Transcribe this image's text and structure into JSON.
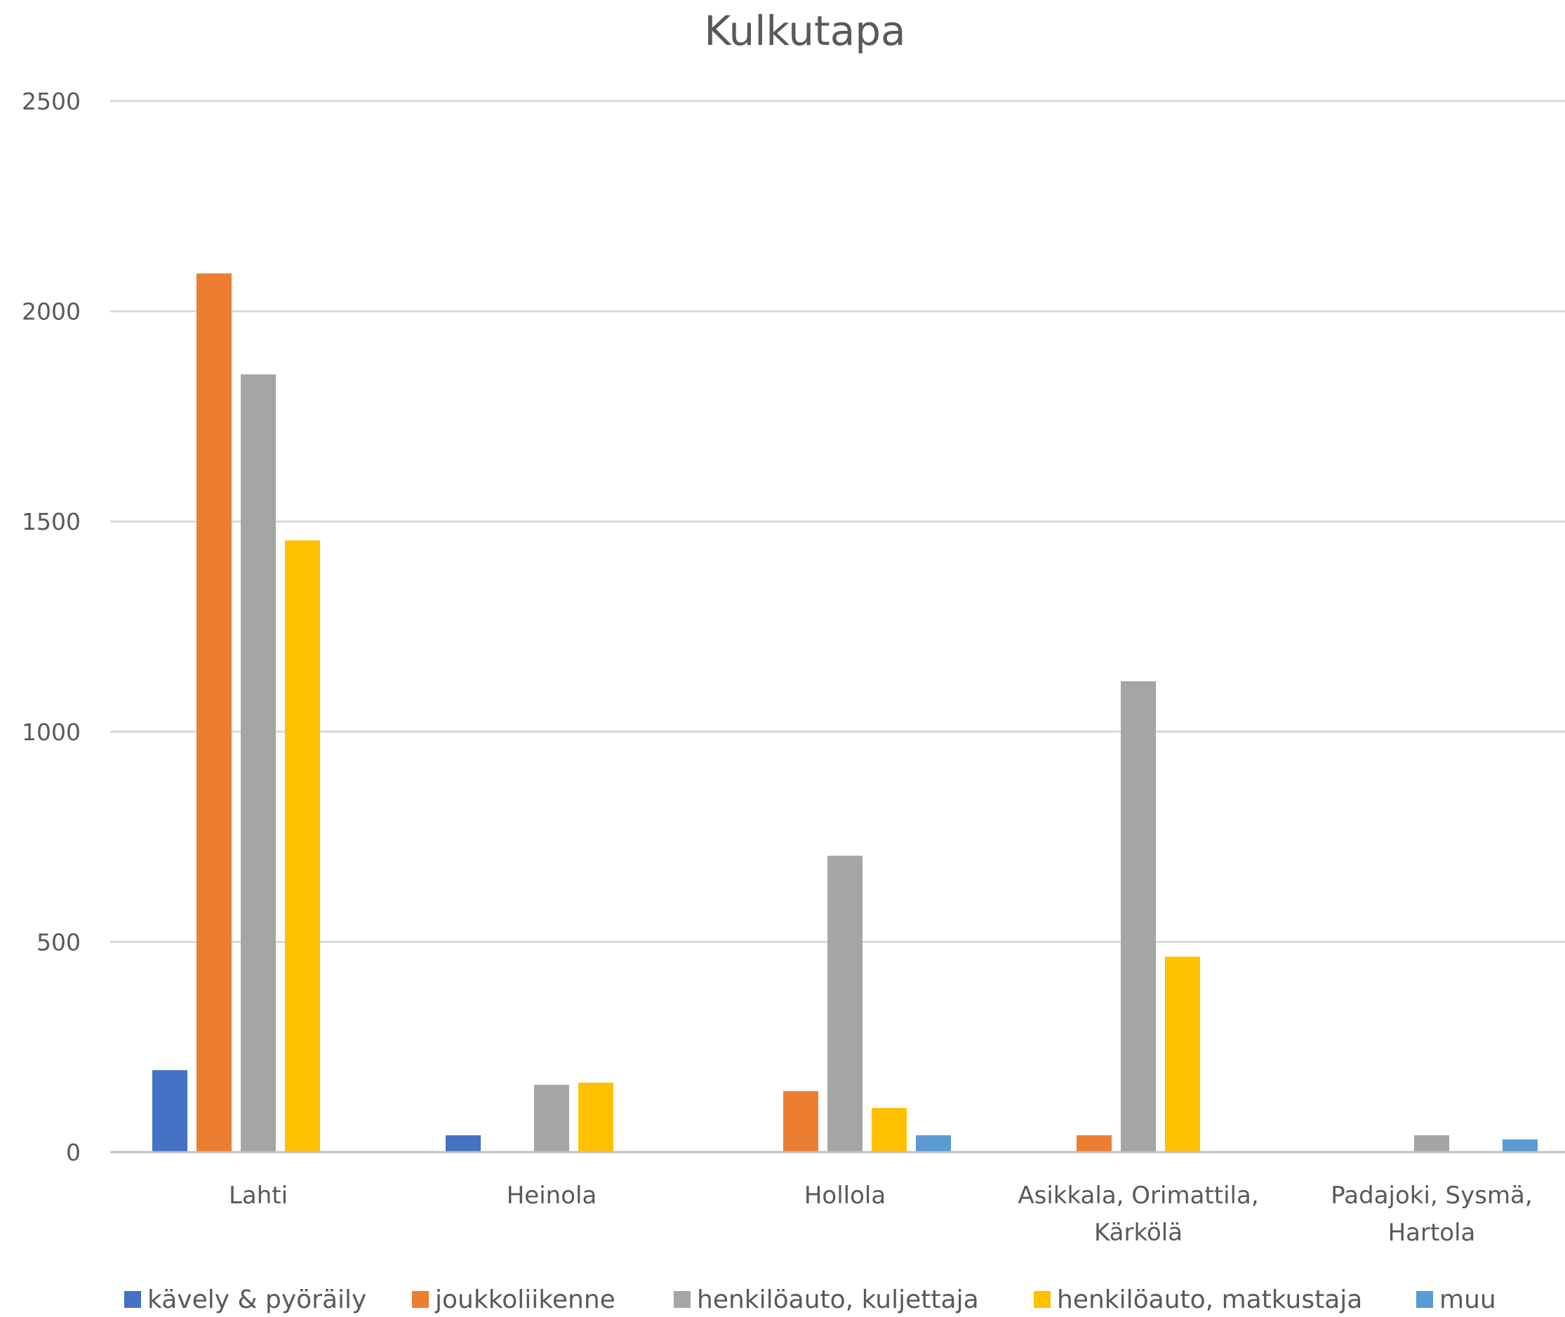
{
  "chart_data": {
    "type": "bar",
    "title": "Kulkutapa",
    "xlabel": "",
    "ylabel": "",
    "ylim": [
      0,
      2500
    ],
    "yticks": [
      0,
      500,
      1000,
      1500,
      2000,
      2500
    ],
    "ytick_labels": [
      "0",
      "500",
      "1000",
      "1500",
      "2000",
      "2500"
    ],
    "grid": true,
    "legend_position": "bottom",
    "categories": [
      [
        "Lahti"
      ],
      [
        "Heinola"
      ],
      [
        "Hollola"
      ],
      [
        "Asikkala, Orimattila,",
        "Kärkölä"
      ],
      [
        "Padajoki, Sysmä,",
        "Hartola"
      ]
    ],
    "series": [
      {
        "name": "kävely & pyöräily",
        "color": "#4472c4",
        "values": [
          195,
          40,
          0,
          0,
          0
        ]
      },
      {
        "name": "joukkoliikenne",
        "color": "#ed7d31",
        "values": [
          2090,
          0,
          145,
          40,
          0
        ]
      },
      {
        "name": "henkilöauto, kuljettaja",
        "color": "#a5a5a5",
        "values": [
          1850,
          160,
          705,
          1120,
          40
        ]
      },
      {
        "name": "henkilöauto, matkustaja",
        "color": "#ffc000",
        "values": [
          1455,
          165,
          105,
          465,
          0
        ]
      },
      {
        "name": "muu",
        "color": "#5b9bd5",
        "values": [
          0,
          0,
          40,
          0,
          30
        ]
      }
    ]
  }
}
